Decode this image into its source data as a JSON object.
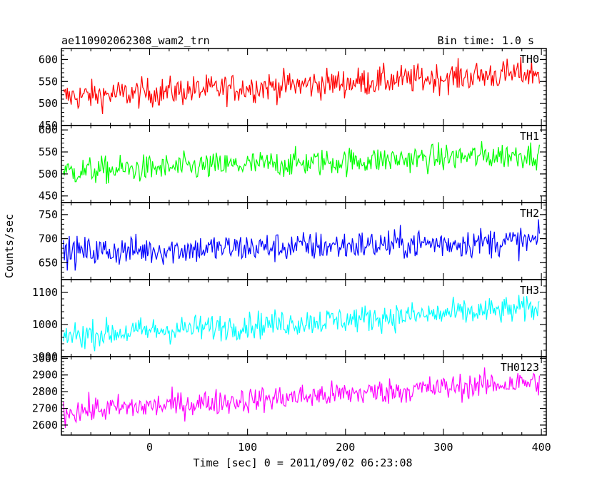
{
  "header": {
    "title": "ae110902062308_wam2_trn",
    "bin_time": "Bin time: 1.0 s"
  },
  "axes": {
    "ylabel": "Counts/sec",
    "xlabel": "Time [sec] 0 = 2011/09/02 06:23:08"
  },
  "chart_data": {
    "type": "line",
    "shared_x": true,
    "xlim": [
      -90,
      405
    ],
    "x_ticks": [
      0,
      100,
      200,
      300,
      400
    ],
    "x_step": 1,
    "x_start": -88,
    "x_end": 398,
    "panels": [
      {
        "name": "TH0",
        "color": "#ff0000",
        "ylim": [
          450,
          625
        ],
        "y_ticks": [
          450,
          500,
          550,
          600
        ],
        "trend_start": 515,
        "trend_end": 570,
        "noise": 30
      },
      {
        "name": "TH1",
        "color": "#00ff00",
        "ylim": [
          435,
          610
        ],
        "y_ticks": [
          450,
          500,
          550,
          600
        ],
        "trend_start": 505,
        "trend_end": 545,
        "noise": 28
      },
      {
        "name": "TH2",
        "color": "#0000ff",
        "ylim": [
          615,
          775
        ],
        "y_ticks": [
          650,
          700,
          750
        ],
        "trend_start": 672,
        "trend_end": 695,
        "noise": 28
      },
      {
        "name": "TH3",
        "color": "#00ffff",
        "ylim": [
          900,
          1140
        ],
        "y_ticks": [
          900,
          1000,
          1100
        ],
        "trend_start": 965,
        "trend_end": 1050,
        "noise": 38
      },
      {
        "name": "TH0123",
        "color": "#ff00ff",
        "ylim": [
          2540,
          3010
        ],
        "y_ticks": [
          2600,
          2700,
          2800,
          2900,
          3000
        ],
        "trend_start": 2680,
        "trend_end": 2860,
        "noise": 70
      }
    ]
  }
}
